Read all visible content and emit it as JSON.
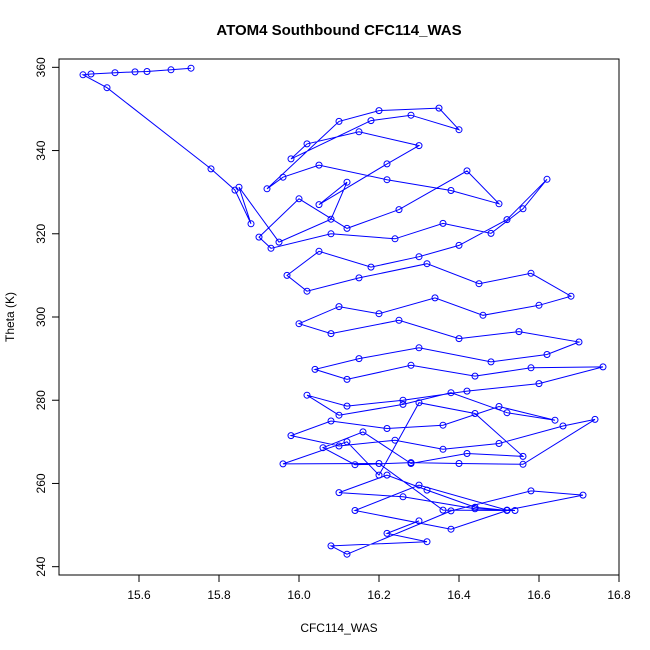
{
  "chart_data": {
    "type": "scatter",
    "title": "ATOM4 Southbound CFC114_WAS",
    "xlabel": "CFC114_WAS",
    "ylabel": "Theta (K)",
    "xlim": [
      15.4,
      16.8
    ],
    "ylim": [
      238,
      362
    ],
    "x_ticks": [
      15.6,
      15.8,
      16.0,
      16.2,
      16.4,
      16.6,
      16.8
    ],
    "x_tick_labels": [
      "15.6",
      "15.8",
      "16.0",
      "16.2",
      "16.4",
      "16.6",
      "16.8"
    ],
    "y_ticks": [
      240,
      260,
      280,
      300,
      320,
      340,
      360
    ],
    "y_tick_labels": [
      "240",
      "260",
      "280",
      "300",
      "320",
      "340",
      "360"
    ],
    "grid": false,
    "connect_points": true,
    "marker": "open-circle",
    "color": "#0000ff",
    "series": [
      {
        "x": [
          15.73,
          15.68,
          15.62,
          15.59,
          15.54,
          15.48,
          15.46,
          15.52,
          15.78,
          15.84,
          15.88,
          15.85,
          15.95,
          16.08,
          16.12,
          16.05,
          16.22,
          16.3,
          16.15,
          16.02,
          15.98,
          16.18,
          16.28,
          16.4,
          16.35,
          16.2,
          16.1,
          15.92,
          15.96,
          16.05,
          16.22,
          16.38,
          16.5,
          16.42,
          16.25,
          16.12,
          16.0,
          15.9,
          15.93,
          16.08,
          16.24,
          16.36,
          16.48,
          16.56,
          16.62,
          16.52,
          16.4,
          16.3,
          16.18,
          16.05,
          15.97,
          16.02,
          16.15,
          16.32,
          16.45,
          16.58,
          16.68,
          16.6,
          16.46,
          16.34,
          16.2,
          16.1,
          16.0,
          16.08,
          16.25,
          16.4,
          16.55,
          16.7,
          16.62,
          16.48,
          16.3,
          16.15,
          16.04,
          16.12,
          16.28,
          16.44,
          16.58,
          16.76,
          16.6,
          16.42,
          16.26,
          16.12,
          16.02,
          16.1,
          16.26,
          16.38,
          16.52,
          16.64,
          16.5,
          16.36,
          16.22,
          16.08,
          15.98,
          16.1,
          16.24,
          16.36,
          16.5,
          16.66,
          16.74,
          16.56,
          16.4,
          16.28,
          16.14,
          16.06,
          16.16,
          16.28,
          16.42,
          16.56,
          16.44,
          16.3,
          16.2,
          16.12,
          15.96,
          16.2,
          16.36,
          16.54,
          16.44,
          16.26,
          16.1,
          16.22,
          16.32,
          16.44,
          16.52,
          16.38,
          16.14,
          16.3,
          16.52,
          16.71,
          16.58,
          16.38,
          16.12,
          16.08,
          16.32,
          16.22,
          16.3
        ],
        "y": [
          359.8,
          359.4,
          359.0,
          358.9,
          358.7,
          358.4,
          358.2,
          355.1,
          335.6,
          330.5,
          322.4,
          331.2,
          318.0,
          323.5,
          332.4,
          327.0,
          336.8,
          341.2,
          344.5,
          341.6,
          338.0,
          347.2,
          348.5,
          345.0,
          350.2,
          349.6,
          347.0,
          330.8,
          333.6,
          336.5,
          333.0,
          330.4,
          327.2,
          335.1,
          325.8,
          321.3,
          328.4,
          319.2,
          316.5,
          320.0,
          318.8,
          322.5,
          320.1,
          326.0,
          333.1,
          323.4,
          317.2,
          314.5,
          312.0,
          315.8,
          310.0,
          306.2,
          309.4,
          312.8,
          308.0,
          310.5,
          305.0,
          302.8,
          300.4,
          304.6,
          300.8,
          302.5,
          298.4,
          296.0,
          299.2,
          294.8,
          296.5,
          294.0,
          291.0,
          289.2,
          292.6,
          290.0,
          287.4,
          285.0,
          288.4,
          285.8,
          287.8,
          288.0,
          284.0,
          282.2,
          280.0,
          278.6,
          281.2,
          276.4,
          279.0,
          281.8,
          277.0,
          275.2,
          278.5,
          274.0,
          273.2,
          275.0,
          271.5,
          269.0,
          270.4,
          268.2,
          269.6,
          273.8,
          275.4,
          264.6,
          264.8,
          265.0,
          264.5,
          268.6,
          272.4,
          264.8,
          267.2,
          266.5,
          276.8,
          279.4,
          262.0,
          270.0,
          264.7,
          264.8,
          253.6,
          253.5,
          253.9,
          256.8,
          257.8,
          262.0,
          258.4,
          254.3,
          253.5,
          249.0,
          253.5,
          259.6,
          253.6,
          257.2,
          258.2,
          253.4,
          243.0,
          245.0,
          246.0,
          248.0,
          251.0
        ]
      }
    ]
  }
}
